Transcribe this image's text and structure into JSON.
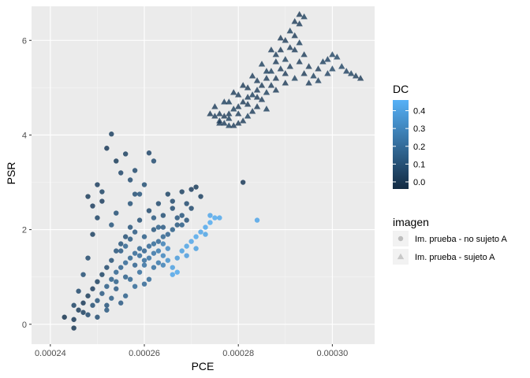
{
  "chart_data": {
    "type": "scatter",
    "xlabel": "PCE",
    "ylabel": "PSR",
    "xlim": [
      0.000236,
      0.000309
    ],
    "ylim": [
      -0.42,
      6.72
    ],
    "x_ticks": [
      0.00024,
      0.00026,
      0.00028,
      0.0003
    ],
    "x_tick_labels": [
      "0.00024",
      "0.00026",
      "0.00028",
      "0.00030"
    ],
    "y_ticks": [
      0,
      2,
      4,
      6
    ],
    "y_tick_labels": [
      "0",
      "2",
      "4",
      "6"
    ],
    "grid": true,
    "background": "#ebebeb",
    "legend_position": "right",
    "color_legend": {
      "title": "DC",
      "ticks": [
        0.0,
        0.1,
        0.2,
        0.3,
        0.4
      ],
      "tick_labels": [
        "0.0",
        "0.1",
        "0.2",
        "0.3",
        "0.4"
      ],
      "range": [
        -0.04,
        0.46
      ],
      "low_color": "#132B43",
      "high_color": "#56B1F7"
    },
    "shape_legend": {
      "title": "imagen",
      "entries": [
        {
          "label": "Im. prueba - no sujeto A",
          "shape": "circle"
        },
        {
          "label": "Im. prueba - sujeto A",
          "shape": "triangle"
        }
      ]
    },
    "series": [
      {
        "shape": "circle",
        "points": [
          [
            0.000243,
            0.15,
            0.0
          ],
          [
            0.000245,
            0.1,
            0.02
          ],
          [
            0.000245,
            -0.08,
            0.01
          ],
          [
            0.000246,
            0.3,
            0.03
          ],
          [
            0.000247,
            0.25,
            0.05
          ],
          [
            0.000247,
            0.45,
            0.02
          ],
          [
            0.000248,
            0.2,
            0.08
          ],
          [
            0.000248,
            0.6,
            0.03
          ],
          [
            0.000249,
            0.4,
            0.1
          ],
          [
            0.000249,
            0.75,
            0.04
          ],
          [
            0.00025,
            0.5,
            0.12
          ],
          [
            0.00025,
            0.9,
            0.05
          ],
          [
            0.00025,
            0.15,
            0.09
          ],
          [
            0.000251,
            0.65,
            0.14
          ],
          [
            0.000251,
            1.05,
            0.06
          ],
          [
            0.000252,
            0.8,
            0.15
          ],
          [
            0.000252,
            1.2,
            0.08
          ],
          [
            0.000252,
            0.4,
            0.12
          ],
          [
            0.000253,
            0.95,
            0.16
          ],
          [
            0.000253,
            1.35,
            0.1
          ],
          [
            0.000254,
            1.1,
            0.18
          ],
          [
            0.000254,
            1.55,
            0.12
          ],
          [
            0.000254,
            0.75,
            0.14
          ],
          [
            0.000255,
            1.2,
            0.17
          ],
          [
            0.000255,
            1.7,
            0.12
          ],
          [
            0.000256,
            1.3,
            0.19
          ],
          [
            0.000256,
            1.85,
            0.1
          ],
          [
            0.000256,
            1.0,
            0.16
          ],
          [
            0.000257,
            1.4,
            0.18
          ],
          [
            0.000257,
            2.05,
            0.11
          ],
          [
            0.000258,
            1.5,
            0.19
          ],
          [
            0.000258,
            1.25,
            0.17
          ],
          [
            0.000259,
            1.6,
            0.18
          ],
          [
            0.000259,
            2.2,
            0.1
          ],
          [
            0.00026,
            1.55,
            0.17
          ],
          [
            0.00026,
            1.85,
            0.15
          ],
          [
            0.000261,
            1.65,
            0.19
          ],
          [
            0.000261,
            2.4,
            0.08
          ],
          [
            0.000262,
            1.7,
            0.2
          ],
          [
            0.000262,
            2.0,
            0.12
          ],
          [
            0.000263,
            1.75,
            0.19
          ],
          [
            0.000263,
            2.55,
            0.08
          ],
          [
            0.000264,
            1.85,
            0.18
          ],
          [
            0.000264,
            2.3,
            0.1
          ],
          [
            0.000265,
            1.9,
            0.17
          ],
          [
            0.000265,
            2.75,
            0.06
          ],
          [
            0.000266,
            2.0,
            0.15
          ],
          [
            0.000266,
            2.6,
            0.08
          ],
          [
            0.000267,
            2.1,
            0.13
          ],
          [
            0.000268,
            2.8,
            0.05
          ],
          [
            0.000268,
            2.3,
            0.12
          ],
          [
            0.000269,
            2.55,
            0.09
          ],
          [
            0.00027,
            2.85,
            0.04
          ],
          [
            0.00027,
            2.45,
            0.08
          ],
          [
            0.000271,
            2.9,
            0.03
          ],
          [
            0.000272,
            2.7,
            0.05
          ],
          [
            0.000252,
            3.72,
            0.02
          ],
          [
            0.000253,
            4.02,
            0.05
          ],
          [
            0.000254,
            3.45,
            0.03
          ],
          [
            0.000251,
            2.8,
            0.06
          ],
          [
            0.00025,
            2.95,
            0.04
          ],
          [
            0.000255,
            3.2,
            0.07
          ],
          [
            0.000256,
            3.6,
            0.05
          ],
          [
            0.000257,
            3.05,
            0.09
          ],
          [
            0.000258,
            3.25,
            0.08
          ],
          [
            0.000261,
            3.62,
            0.07
          ],
          [
            0.000262,
            3.45,
            0.09
          ],
          [
            0.000259,
            2.75,
            0.12
          ],
          [
            0.00026,
            2.95,
            0.1
          ],
          [
            0.000248,
            1.4,
            0.08
          ],
          [
            0.000249,
            1.9,
            0.05
          ],
          [
            0.00025,
            2.25,
            0.06
          ],
          [
            0.000251,
            2.6,
            0.04
          ],
          [
            0.000247,
            1.05,
            0.1
          ],
          [
            0.000246,
            0.7,
            0.08
          ],
          [
            0.000248,
            2.7,
            0.03
          ],
          [
            0.000249,
            2.5,
            0.04
          ],
          [
            0.000253,
            2.1,
            0.12
          ],
          [
            0.000254,
            2.35,
            0.1
          ],
          [
            0.000257,
            2.55,
            0.11
          ],
          [
            0.000258,
            2.75,
            0.1
          ],
          [
            0.000255,
            0.45,
            0.14
          ],
          [
            0.000256,
            0.6,
            0.16
          ],
          [
            0.000257,
            0.95,
            0.18
          ],
          [
            0.000258,
            0.8,
            0.2
          ],
          [
            0.000259,
            1.1,
            0.21
          ],
          [
            0.00026,
            1.25,
            0.22
          ],
          [
            0.000261,
            1.4,
            0.23
          ],
          [
            0.000262,
            1.5,
            0.24
          ],
          [
            0.000263,
            1.55,
            0.26
          ],
          [
            0.000264,
            1.45,
            0.3
          ],
          [
            0.000265,
            1.35,
            0.35
          ],
          [
            0.000266,
            1.2,
            0.4
          ],
          [
            0.000266,
            1.05,
            0.42
          ],
          [
            0.000267,
            1.1,
            0.43
          ],
          [
            0.000267,
            1.4,
            0.38
          ],
          [
            0.000268,
            1.55,
            0.4
          ],
          [
            0.000269,
            1.65,
            0.41
          ],
          [
            0.00027,
            1.75,
            0.42
          ],
          [
            0.000271,
            1.85,
            0.43
          ],
          [
            0.000272,
            1.95,
            0.42
          ],
          [
            0.000273,
            2.05,
            0.43
          ],
          [
            0.000274,
            2.15,
            0.44
          ],
          [
            0.000275,
            2.25,
            0.44
          ],
          [
            0.000276,
            2.25,
            0.43
          ],
          [
            0.000274,
            2.3,
            0.42
          ],
          [
            0.000273,
            1.9,
            0.41
          ],
          [
            0.000271,
            1.6,
            0.4
          ],
          [
            0.000269,
            1.45,
            0.39
          ],
          [
            0.000265,
            1.6,
            0.32
          ],
          [
            0.000264,
            1.7,
            0.28
          ],
          [
            0.000268,
            2.1,
            0.15
          ],
          [
            0.000267,
            2.25,
            0.12
          ],
          [
            0.000269,
            2.2,
            0.11
          ],
          [
            0.000266,
            2.45,
            0.09
          ],
          [
            0.000264,
            2.05,
            0.14
          ],
          [
            0.000262,
            2.25,
            0.13
          ],
          [
            0.000263,
            2.05,
            0.16
          ],
          [
            0.000262,
            1.2,
            0.22
          ],
          [
            0.000261,
            0.95,
            0.2
          ],
          [
            0.00026,
            0.85,
            0.19
          ],
          [
            0.000263,
            1.3,
            0.25
          ],
          [
            0.000264,
            1.25,
            0.28
          ],
          [
            0.000284,
            2.2,
            0.42
          ],
          [
            0.000281,
            3.0,
            0.02
          ],
          [
            0.000252,
            0.3,
            0.13
          ],
          [
            0.000253,
            0.55,
            0.15
          ],
          [
            0.000254,
            0.9,
            0.16
          ],
          [
            0.000255,
            1.55,
            0.14
          ],
          [
            0.000256,
            1.65,
            0.18
          ],
          [
            0.000257,
            1.8,
            0.13
          ],
          [
            0.000258,
            1.95,
            0.14
          ],
          [
            0.000259,
            1.45,
            0.2
          ],
          [
            0.00026,
            1.35,
            0.21
          ],
          [
            0.000245,
            0.4,
            0.06
          ]
        ]
      },
      {
        "shape": "triangle",
        "points": [
          [
            0.000275,
            4.4,
            0.02
          ],
          [
            0.000276,
            4.3,
            0.01
          ],
          [
            0.000277,
            4.25,
            0.02
          ],
          [
            0.000278,
            4.2,
            0.03
          ],
          [
            0.000279,
            4.2,
            0.02
          ],
          [
            0.00028,
            4.25,
            0.01
          ],
          [
            0.000281,
            4.3,
            0.02
          ],
          [
            0.000282,
            4.4,
            0.03
          ],
          [
            0.000283,
            4.5,
            0.02
          ],
          [
            0.000284,
            4.6,
            0.01
          ],
          [
            0.000285,
            4.75,
            0.02
          ],
          [
            0.000286,
            4.9,
            0.03
          ],
          [
            0.000287,
            5.05,
            0.02
          ],
          [
            0.000288,
            5.2,
            0.01
          ],
          [
            0.000289,
            5.4,
            0.02
          ],
          [
            0.00029,
            5.6,
            0.03
          ],
          [
            0.000291,
            5.85,
            0.02
          ],
          [
            0.000292,
            6.1,
            0.01
          ],
          [
            0.000293,
            6.35,
            0.02
          ],
          [
            0.000294,
            6.5,
            0.03
          ],
          [
            0.000293,
            6.55,
            0.01
          ],
          [
            0.000292,
            6.4,
            0.02
          ],
          [
            0.000291,
            6.2,
            0.03
          ],
          [
            0.00029,
            6.0,
            0.02
          ],
          [
            0.000289,
            5.8,
            0.01
          ],
          [
            0.000288,
            5.55,
            0.02
          ],
          [
            0.000287,
            5.35,
            0.03
          ],
          [
            0.000286,
            5.2,
            0.02
          ],
          [
            0.000285,
            5.05,
            0.01
          ],
          [
            0.000284,
            4.95,
            0.02
          ],
          [
            0.000283,
            4.85,
            0.03
          ],
          [
            0.000282,
            4.8,
            0.02
          ],
          [
            0.000281,
            4.7,
            0.01
          ],
          [
            0.00028,
            4.6,
            0.02
          ],
          [
            0.000279,
            4.55,
            0.03
          ],
          [
            0.000278,
            4.45,
            0.02
          ],
          [
            0.000277,
            4.4,
            0.01
          ],
          [
            0.000276,
            4.45,
            0.02
          ],
          [
            0.000278,
            4.7,
            0.03
          ],
          [
            0.00028,
            4.85,
            0.02
          ],
          [
            0.000282,
            5.0,
            0.01
          ],
          [
            0.000284,
            5.15,
            0.02
          ],
          [
            0.000286,
            5.35,
            0.03
          ],
          [
            0.000288,
            5.7,
            0.02
          ],
          [
            0.00029,
            5.3,
            0.01
          ],
          [
            0.000291,
            5.45,
            0.02
          ],
          [
            0.000292,
            5.2,
            0.03
          ],
          [
            0.000293,
            5.55,
            0.02
          ],
          [
            0.000294,
            5.3,
            0.01
          ],
          [
            0.000295,
            5.1,
            0.02
          ],
          [
            0.000296,
            5.25,
            0.03
          ],
          [
            0.000297,
            5.4,
            0.02
          ],
          [
            0.000298,
            5.55,
            0.03
          ],
          [
            0.000299,
            5.6,
            0.04
          ],
          [
            0.0003,
            5.7,
            0.05
          ],
          [
            0.000301,
            5.65,
            0.06
          ],
          [
            0.000302,
            5.45,
            0.05
          ],
          [
            0.000303,
            5.35,
            0.04
          ],
          [
            0.000304,
            5.3,
            0.03
          ],
          [
            0.000305,
            5.25,
            0.02
          ],
          [
            0.000306,
            5.2,
            0.01
          ],
          [
            0.000299,
            5.3,
            0.04
          ],
          [
            0.0003,
            5.4,
            0.05
          ],
          [
            0.000297,
            5.15,
            0.03
          ],
          [
            0.000295,
            5.45,
            0.02
          ],
          [
            0.000294,
            5.7,
            0.02
          ],
          [
            0.000289,
            6.05,
            0.01
          ],
          [
            0.000287,
            5.8,
            0.02
          ],
          [
            0.000285,
            5.5,
            0.03
          ],
          [
            0.000283,
            5.25,
            0.02
          ],
          [
            0.000281,
            5.05,
            0.01
          ],
          [
            0.000279,
            4.9,
            0.02
          ],
          [
            0.000277,
            4.7,
            0.03
          ],
          [
            0.000275,
            4.6,
            0.02
          ],
          [
            0.000274,
            4.45,
            0.01
          ],
          [
            0.000276,
            4.25,
            0.02
          ],
          [
            0.000278,
            4.35,
            0.03
          ],
          [
            0.00028,
            4.45,
            0.02
          ],
          [
            0.000282,
            4.65,
            0.01
          ],
          [
            0.000284,
            4.8,
            0.02
          ],
          [
            0.000286,
            4.55,
            0.03
          ],
          [
            0.000288,
            4.95,
            0.02
          ],
          [
            0.00029,
            5.1,
            0.01
          ],
          [
            0.000292,
            5.8,
            0.02
          ],
          [
            0.000293,
            5.95,
            0.03
          ]
        ]
      }
    ]
  }
}
